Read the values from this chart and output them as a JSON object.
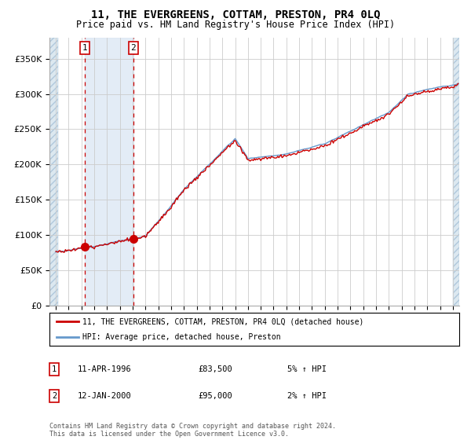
{
  "title": "11, THE EVERGREENS, COTTAM, PRESTON, PR4 0LQ",
  "subtitle": "Price paid vs. HM Land Registry's House Price Index (HPI)",
  "legend_line1": "11, THE EVERGREENS, COTTAM, PRESTON, PR4 0LQ (detached house)",
  "legend_line2": "HPI: Average price, detached house, Preston",
  "annotation1_label": "1",
  "annotation1_date": "11-APR-1996",
  "annotation1_price": "£83,500",
  "annotation1_hpi": "5% ↑ HPI",
  "annotation2_label": "2",
  "annotation2_date": "12-JAN-2000",
  "annotation2_price": "£95,000",
  "annotation2_hpi": "2% ↑ HPI",
  "footnote": "Contains HM Land Registry data © Crown copyright and database right 2024.\nThis data is licensed under the Open Government Licence v3.0.",
  "red_line_color": "#cc0000",
  "blue_line_color": "#6699cc",
  "dot_color": "#cc0000",
  "shade_color": "#dce8f4",
  "hatch_edge_color": "#b0c8dc",
  "hatch_face_color": "#dce8f0",
  "grid_color": "#cccccc",
  "background_color": "#ffffff",
  "ylim": [
    0,
    380000
  ],
  "yticks": [
    0,
    50000,
    100000,
    150000,
    200000,
    250000,
    300000,
    350000
  ],
  "xlim_start": 1993.5,
  "xlim_end": 2025.5,
  "hatch_left_end": 1994.17,
  "hatch_right_start": 2025.0,
  "sale1_x": 1996.27,
  "sale1_y": 83500,
  "sale2_x": 2000.04,
  "sale2_y": 95000
}
